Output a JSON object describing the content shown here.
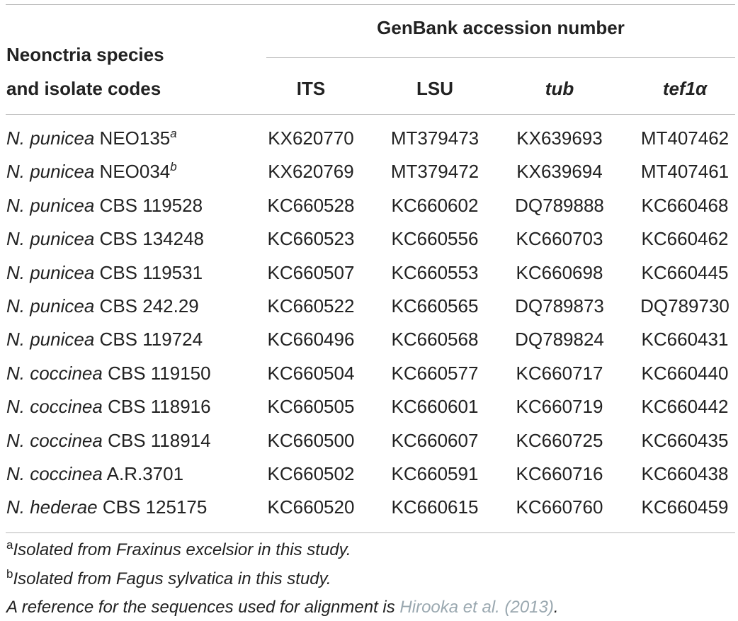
{
  "table": {
    "group_header": "GenBank accession number",
    "species_header_line1": "Neonctria species",
    "species_header_line2": "and isolate codes",
    "columns": [
      {
        "label": "ITS",
        "italic": false
      },
      {
        "label": "LSU",
        "italic": false
      },
      {
        "label": "tub",
        "italic": true
      },
      {
        "label": "tef1α",
        "italic": true
      }
    ],
    "rows": [
      {
        "genus": "N. punicea",
        "code": "NEO135",
        "mark": "a",
        "its": "KX620770",
        "lsu": "MT379473",
        "tub": "KX639693",
        "tef": "MT407462"
      },
      {
        "genus": "N. punicea",
        "code": "NEO034",
        "mark": "b",
        "its": "KX620769",
        "lsu": "MT379472",
        "tub": "KX639694",
        "tef": "MT407461"
      },
      {
        "genus": "N. punicea",
        "code": "CBS 119528",
        "mark": "",
        "its": "KC660528",
        "lsu": "KC660602",
        "tub": "DQ789888",
        "tef": "KC660468"
      },
      {
        "genus": "N. punicea",
        "code": "CBS 134248",
        "mark": "",
        "its": "KC660523",
        "lsu": "KC660556",
        "tub": "KC660703",
        "tef": "KC660462"
      },
      {
        "genus": "N. punicea",
        "code": "CBS 119531",
        "mark": "",
        "its": "KC660507",
        "lsu": "KC660553",
        "tub": "KC660698",
        "tef": "KC660445"
      },
      {
        "genus": "N. punicea",
        "code": "CBS 242.29",
        "mark": "",
        "its": "KC660522",
        "lsu": "KC660565",
        "tub": "DQ789873",
        "tef": "DQ789730"
      },
      {
        "genus": "N. punicea",
        "code": "CBS 119724",
        "mark": "",
        "its": "KC660496",
        "lsu": "KC660568",
        "tub": "DQ789824",
        "tef": "KC660431"
      },
      {
        "genus": "N. coccinea",
        "code": "CBS 119150",
        "mark": "",
        "its": "KC660504",
        "lsu": "KC660577",
        "tub": "KC660717",
        "tef": "KC660440"
      },
      {
        "genus": "N. coccinea",
        "code": "CBS 118916",
        "mark": "",
        "its": "KC660505",
        "lsu": "KC660601",
        "tub": "KC660719",
        "tef": "KC660442"
      },
      {
        "genus": "N. coccinea",
        "code": "CBS 118914",
        "mark": "",
        "its": "KC660500",
        "lsu": "KC660607",
        "tub": "KC660725",
        "tef": "KC660435"
      },
      {
        "genus": "N. coccinea",
        "code": "A.R.3701",
        "mark": "",
        "its": "KC660502",
        "lsu": "KC660591",
        "tub": "KC660716",
        "tef": "KC660438"
      },
      {
        "genus": "N. hederae",
        "code": "CBS 125175",
        "mark": "",
        "its": "KC660520",
        "lsu": "KC660615",
        "tub": "KC660760",
        "tef": "KC660459"
      }
    ]
  },
  "footnotes": {
    "a_mark": "a",
    "a_text": "Isolated from Fraxinus excelsior in this study.",
    "b_mark": "b",
    "b_text": "Isolated from Fagus sylvatica in this study.",
    "ref_prefix": "A reference for the sequences used for alignment is ",
    "ref_link": "Hirooka et al. (2013)",
    "ref_suffix": "."
  },
  "colors": {
    "text": "#222222",
    "rule": "#b8b8b8",
    "link": "#9aa8b0"
  }
}
